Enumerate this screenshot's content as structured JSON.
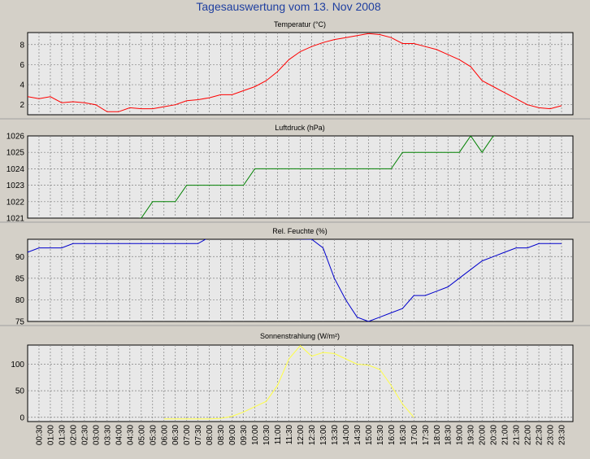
{
  "title": "Tagesauswertung vom 13. Nov 2008",
  "x_ticks": [
    "00:30",
    "01:00",
    "01:30",
    "02:00",
    "02:30",
    "03:00",
    "03:30",
    "04:00",
    "04:30",
    "05:00",
    "05:30",
    "06:00",
    "06:30",
    "07:00",
    "07:30",
    "08:00",
    "08:30",
    "09:00",
    "09:30",
    "10:00",
    "10:30",
    "11:00",
    "11:30",
    "12:00",
    "12:30",
    "13:00",
    "13:30",
    "14:00",
    "14:30",
    "15:00",
    "15:30",
    "16:00",
    "16:30",
    "17:00",
    "17:30",
    "18:00",
    "18:30",
    "19:00",
    "19:30",
    "20:00",
    "20:30",
    "21:00",
    "21:30",
    "22:00",
    "22:30",
    "23:00",
    "23:30"
  ],
  "colors": {
    "background": "#d4d0c8",
    "plot": "#e8e8e8",
    "title": "#1f3fa0",
    "temperature": "#ff0000",
    "pressure": "#008000",
    "humidity": "#0000cc",
    "radiation": "#ffff44"
  },
  "chart_data": [
    {
      "type": "line",
      "title": "Temperatur (°C)",
      "ylim": [
        1,
        9.2
      ],
      "yticks": [
        2,
        4,
        6,
        8
      ],
      "grid": true,
      "series": [
        {
          "color": "#ff0000",
          "x": [
            "00:00",
            "00:30",
            "01:00",
            "01:30",
            "02:00",
            "02:30",
            "03:00",
            "03:30",
            "04:00",
            "04:30",
            "05:00",
            "05:30",
            "06:00",
            "06:30",
            "07:00",
            "07:30",
            "08:00",
            "08:30",
            "09:00",
            "09:30",
            "10:00",
            "10:30",
            "11:00",
            "11:30",
            "12:00",
            "12:30",
            "13:00",
            "13:30",
            "14:00",
            "14:30",
            "15:00",
            "15:30",
            "16:00",
            "16:30",
            "17:00",
            "17:30",
            "18:00",
            "18:30",
            "19:00",
            "19:30",
            "20:00",
            "20:30",
            "21:00",
            "21:30",
            "22:00",
            "22:30",
            "23:00",
            "23:30"
          ],
          "values": [
            2.8,
            2.6,
            2.8,
            2.2,
            2.3,
            2.2,
            2.0,
            1.3,
            1.3,
            1.7,
            1.6,
            1.6,
            1.8,
            2.0,
            2.4,
            2.5,
            2.7,
            3.0,
            3.0,
            3.4,
            3.8,
            4.4,
            5.3,
            6.5,
            7.3,
            7.8,
            8.2,
            8.5,
            8.7,
            8.9,
            9.1,
            9.0,
            8.7,
            8.1,
            8.1,
            7.8,
            7.5,
            7.0,
            6.5,
            5.8,
            4.4,
            3.8,
            3.2,
            2.6,
            2.0,
            1.7,
            1.6,
            1.9
          ]
        }
      ]
    },
    {
      "type": "line",
      "title": "Luftdruck (hPa)",
      "ylim": [
        1021,
        1026
      ],
      "yticks": [
        1021,
        1022,
        1023,
        1024,
        1025,
        1026
      ],
      "grid": true,
      "series": [
        {
          "color": "#008000",
          "x": [
            "04:30",
            "05:00",
            "05:30",
            "06:00",
            "06:30",
            "07:00",
            "07:30",
            "08:00",
            "08:30",
            "09:00",
            "09:30",
            "10:00",
            "10:30",
            "11:00",
            "11:30",
            "12:00",
            "12:30",
            "13:00",
            "13:30",
            "14:00",
            "14:30",
            "15:00",
            "15:30",
            "16:00",
            "16:30",
            "17:00",
            "17:30",
            "18:00",
            "18:30",
            "19:00",
            "19:30",
            "20:00",
            "20:30",
            "21:00"
          ],
          "values": [
            1020.9,
            1021,
            1022,
            1022,
            1022,
            1023,
            1023,
            1023,
            1023,
            1023,
            1023,
            1024,
            1024,
            1024,
            1024,
            1024,
            1024,
            1024,
            1024,
            1024,
            1024,
            1024,
            1024,
            1024,
            1025,
            1025,
            1025,
            1025,
            1025,
            1025,
            1026,
            1025,
            1026,
            1026.1
          ]
        }
      ]
    },
    {
      "type": "line",
      "title": "Rel. Feuchte (%)",
      "ylim": [
        75,
        94
      ],
      "yticks": [
        75,
        80,
        85,
        90
      ],
      "grid": true,
      "series": [
        {
          "color": "#0000cc",
          "x": [
            "00:00",
            "00:30",
            "01:00",
            "01:30",
            "02:00",
            "02:30",
            "03:00",
            "03:30",
            "04:00",
            "04:30",
            "05:00",
            "05:30",
            "06:00",
            "06:30",
            "07:00",
            "07:30",
            "08:00",
            "12:30",
            "13:00",
            "13:30",
            "14:00",
            "14:30",
            "15:00",
            "15:30",
            "16:00",
            "16:30",
            "17:00",
            "17:30",
            "18:00",
            "18:30",
            "19:00",
            "19:30",
            "20:00",
            "20:30",
            "21:00",
            "21:30",
            "22:00",
            "22:30",
            "23:00",
            "23:30"
          ],
          "values": [
            91,
            92,
            92,
            92,
            93,
            93,
            93,
            93,
            93,
            93,
            93,
            93,
            93,
            93,
            93,
            93,
            94.5,
            94,
            92,
            85,
            80,
            76,
            75,
            76,
            77,
            78,
            81,
            81,
            82,
            83,
            85,
            87,
            89,
            90,
            91,
            92,
            92,
            93,
            93,
            93
          ]
        }
      ]
    },
    {
      "type": "line",
      "title": "Sonnenstrahlung (W/m²)",
      "ylim": [
        -8,
        136
      ],
      "yticks": [
        0,
        50,
        100
      ],
      "grid": true,
      "series": [
        {
          "color": "#ffff44",
          "x": [
            "06:00",
            "07:00",
            "08:00",
            "08:30",
            "09:00",
            "09:30",
            "10:00",
            "10:30",
            "11:00",
            "11:30",
            "12:00",
            "12:30",
            "13:00",
            "13:30",
            "14:00",
            "14:30",
            "15:00",
            "15:30",
            "16:00",
            "16:30",
            "17:00"
          ],
          "values": [
            -3,
            -3,
            -3,
            -2,
            2,
            10,
            20,
            30,
            60,
            110,
            135,
            115,
            122,
            120,
            110,
            100,
            98,
            90,
            60,
            25,
            0
          ]
        }
      ]
    }
  ]
}
